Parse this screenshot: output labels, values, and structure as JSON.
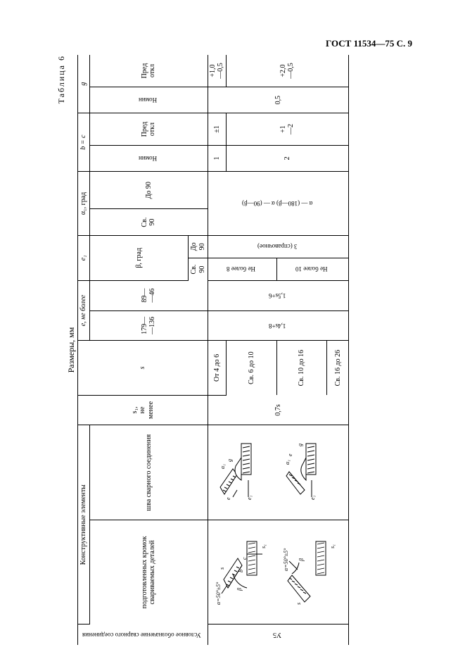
{
  "header": "ГОСТ 11534—75 С. 9",
  "tableLabel": "Таблица 6",
  "unitsLabel": "Размеры, мм",
  "headers": {
    "usl": "Условное обозначение сварного соединения",
    "konstr": "Конструктивные элементы",
    "podgot": "подготовленных кромок свариваемых деталей",
    "shva": "шва сварного соединения",
    "s1": "s₁,\nне\nменее",
    "s": "s",
    "e_nb": "e, не более",
    "e1": "e₁",
    "beta": "β, град",
    "alpha1": "α₁, град",
    "b_c": "b = c",
    "g": "g",
    "nomin": "Номин",
    "pred": "Пред откл",
    "e_nb_1": "179—\n—136",
    "e_nb_2": "89—\n—46",
    "sv90": "Св.\n90",
    "do90": "До\n90",
    "sv90b": "Св.\n90",
    "do90b": "До 90"
  },
  "rows": {
    "y5": "У5",
    "s1_val": "0,7s",
    "s_ranges": [
      "От 4 до 6",
      "Св. 6 до 10",
      "Св. 10 до 16",
      "Св. 16 до 26"
    ],
    "e_nb_1_vals": [
      "1,4s+8"
    ],
    "e_nb_2_vals": [
      "1,5s+6"
    ],
    "e1_sv90": [
      "Не более 8",
      "Не более 10"
    ],
    "e1_do90": "3 (справочное)",
    "alpha1_formula": "α — (180—β) α — (90—β)",
    "b_nomin": [
      "1",
      "2"
    ],
    "b_pred": [
      "±1",
      "+1\n—2"
    ],
    "g_nomin": "0,5",
    "g_pred": [
      "+1,0\n—0,5",
      "+2,0\n—0,5"
    ]
  }
}
